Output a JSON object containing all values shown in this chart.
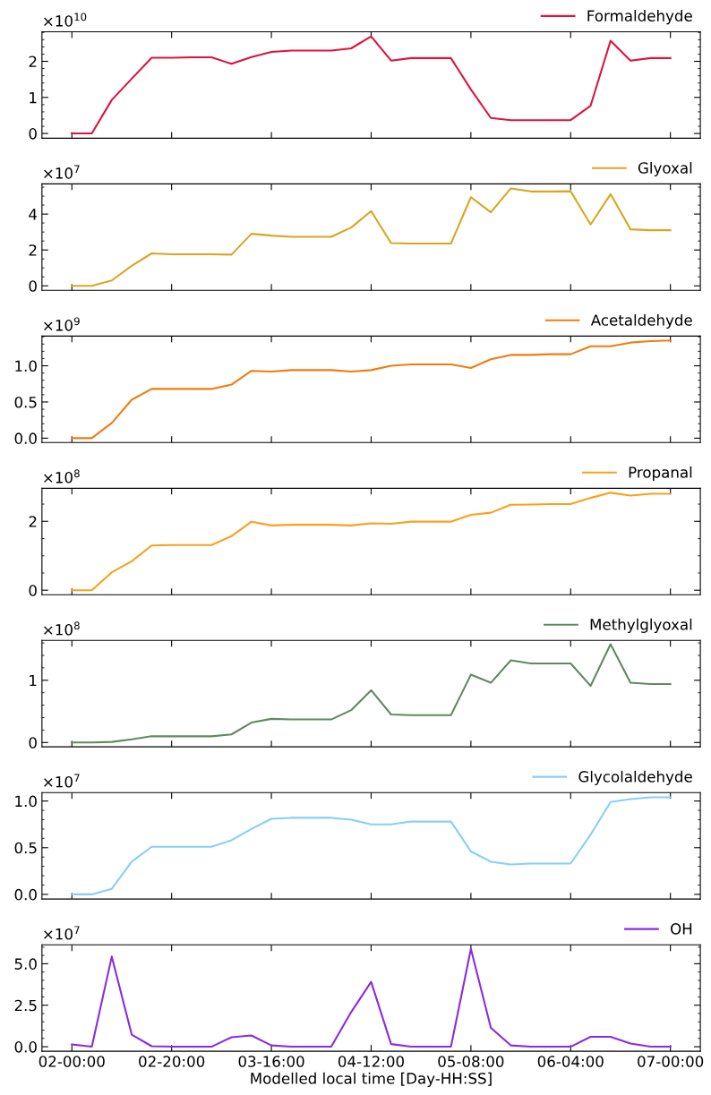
{
  "chart_data": [
    {
      "type": "line",
      "categories": [
        null,
        null,
        null,
        null,
        null,
        null,
        null,
        null,
        null,
        null,
        null,
        null,
        null,
        null,
        null,
        null,
        null,
        null,
        null,
        null,
        null,
        null,
        null,
        null,
        null,
        null,
        null,
        null,
        null,
        null,
        null
      ],
      "tick_labels": "y",
      "legend": "top right",
      "annotations": [
        "×10$^{10}$"
      ],
      "ylim": [
        -0.13,
        2.82
      ],
      "yticks": [
        0,
        1,
        2
      ],
      "series": [
        {
          "name": "Formaldehyde",
          "color": "#dc143c",
          "values": [
            0,
            0,
            0.93,
            1.52,
            2.1,
            2.1,
            2.11,
            2.11,
            1.93,
            2.12,
            2.26,
            2.3,
            2.3,
            2.3,
            2.36,
            2.69,
            2.02,
            2.09,
            2.09,
            2.09,
            1.22,
            0.43,
            0.37,
            0.37,
            0.37,
            0.37,
            0.77,
            2.57,
            2.02,
            2.09,
            2.09
          ]
        }
      ]
    },
    {
      "type": "line",
      "categories": [
        null,
        null,
        null,
        null,
        null,
        null,
        null,
        null,
        null,
        null,
        null,
        null,
        null,
        null,
        null,
        null,
        null,
        null,
        null,
        null,
        null,
        null,
        null,
        null,
        null,
        null,
        null,
        null,
        null,
        null,
        null
      ],
      "tick_labels": "y",
      "legend": "top right",
      "annotations": [
        "×10$^{7}$"
      ],
      "ylim": [
        -0.25,
        5.68
      ],
      "yticks": [
        0,
        2,
        4
      ],
      "series": [
        {
          "name": "Glyoxal",
          "color": "#daa520",
          "values": [
            0,
            0,
            0.3,
            1.12,
            1.81,
            1.76,
            1.76,
            1.76,
            1.74,
            2.9,
            2.8,
            2.73,
            2.73,
            2.73,
            3.25,
            4.17,
            2.38,
            2.36,
            2.36,
            2.36,
            4.94,
            4.1,
            5.43,
            5.26,
            5.26,
            5.27,
            3.42,
            5.11,
            3.15,
            3.1,
            3.1
          ]
        }
      ]
    },
    {
      "type": "line",
      "categories": [
        null,
        null,
        null,
        null,
        null,
        null,
        null,
        null,
        null,
        null,
        null,
        null,
        null,
        null,
        null,
        null,
        null,
        null,
        null,
        null,
        null,
        null,
        null,
        null,
        null,
        null,
        null,
        null,
        null,
        null,
        null
      ],
      "tick_labels": "y",
      "legend": "top right",
      "annotations": [
        "×10$^{9}$"
      ],
      "ylim": [
        -0.06,
        1.41
      ],
      "yticks": [
        {
          "value": 0,
          "label": "0.0"
        },
        0.5,
        {
          "value": 1,
          "label": "1.0"
        }
      ],
      "series": [
        {
          "name": "Acetaldehyde",
          "color": "#ee7d11",
          "values": [
            0,
            0,
            0.21,
            0.53,
            0.68,
            0.68,
            0.68,
            0.68,
            0.74,
            0.93,
            0.92,
            0.94,
            0.94,
            0.94,
            0.92,
            0.94,
            1.0,
            1.02,
            1.02,
            1.02,
            0.97,
            1.09,
            1.15,
            1.15,
            1.16,
            1.16,
            1.27,
            1.27,
            1.32,
            1.34,
            1.35
          ]
        }
      ]
    },
    {
      "type": "line",
      "categories": [
        null,
        null,
        null,
        null,
        null,
        null,
        null,
        null,
        null,
        null,
        null,
        null,
        null,
        null,
        null,
        null,
        null,
        null,
        null,
        null,
        null,
        null,
        null,
        null,
        null,
        null,
        null,
        null,
        null,
        null,
        null
      ],
      "tick_labels": "y",
      "legend": "top right",
      "annotations": [
        "×10$^{8}$"
      ],
      "ylim": [
        -0.13,
        2.96
      ],
      "yticks": [
        0,
        2
      ],
      "series": [
        {
          "name": "Propanal",
          "color": "#f9a11b",
          "values": [
            0,
            0,
            0.52,
            0.84,
            1.3,
            1.31,
            1.31,
            1.31,
            1.57,
            1.99,
            1.88,
            1.9,
            1.9,
            1.9,
            1.88,
            1.94,
            1.93,
            1.99,
            1.99,
            1.99,
            2.19,
            2.25,
            2.48,
            2.49,
            2.5,
            2.5,
            2.68,
            2.83,
            2.75,
            2.8,
            2.8
          ]
        }
      ]
    },
    {
      "type": "line",
      "categories": [
        null,
        null,
        null,
        null,
        null,
        null,
        null,
        null,
        null,
        null,
        null,
        null,
        null,
        null,
        null,
        null,
        null,
        null,
        null,
        null,
        null,
        null,
        null,
        null,
        null,
        null,
        null,
        null,
        null,
        null,
        null
      ],
      "tick_labels": "y",
      "legend": "top right",
      "annotations": [
        "×10$^{8}$"
      ],
      "ylim": [
        -0.07,
        1.64
      ],
      "yticks": [
        0,
        1
      ],
      "series": [
        {
          "name": "Methylglyoxal",
          "color": "#5f8a5f",
          "values": [
            0,
            0,
            0.01,
            0.05,
            0.1,
            0.1,
            0.1,
            0.1,
            0.13,
            0.32,
            0.38,
            0.37,
            0.37,
            0.37,
            0.52,
            0.84,
            0.45,
            0.44,
            0.44,
            0.44,
            1.09,
            0.96,
            1.32,
            1.27,
            1.27,
            1.27,
            0.91,
            1.58,
            0.96,
            0.94,
            0.94
          ]
        }
      ]
    },
    {
      "type": "line",
      "categories": [
        null,
        null,
        null,
        null,
        null,
        null,
        null,
        null,
        null,
        null,
        null,
        null,
        null,
        null,
        null,
        null,
        null,
        null,
        null,
        null,
        null,
        null,
        null,
        null,
        null,
        null,
        null,
        null,
        null,
        null,
        null
      ],
      "tick_labels": "y",
      "legend": "top right",
      "annotations": [
        "×10$^{7}$"
      ],
      "ylim": [
        -0.05,
        1.09
      ],
      "yticks": [
        {
          "value": 0,
          "label": "0.0"
        },
        0.5,
        {
          "value": 1,
          "label": "1.0"
        }
      ],
      "series": [
        {
          "name": "Glycolaldehyde",
          "color": "#87cefa",
          "values": [
            0,
            0,
            0.06,
            0.35,
            0.51,
            0.51,
            0.51,
            0.51,
            0.58,
            0.7,
            0.81,
            0.82,
            0.82,
            0.82,
            0.8,
            0.75,
            0.75,
            0.78,
            0.78,
            0.78,
            0.46,
            0.35,
            0.32,
            0.33,
            0.33,
            0.33,
            0.64,
            0.99,
            1.02,
            1.04,
            1.04
          ]
        }
      ]
    },
    {
      "type": "line",
      "categories": [
        "02-00:00",
        null,
        null,
        null,
        null,
        "02-20:00",
        null,
        null,
        null,
        null,
        "03-16:00",
        null,
        null,
        null,
        null,
        "04-12:00",
        null,
        null,
        null,
        null,
        "05-08:00",
        null,
        null,
        null,
        null,
        "06-04:00",
        null,
        null,
        null,
        null,
        "07-00:00"
      ],
      "xlabel": "Modelled local time [Day-HH:SS]",
      "legend": "top right",
      "annotations": [
        "×10$^{7}$"
      ],
      "ylim": [
        -0.27,
        6.14
      ],
      "yticks": [
        {
          "value": 0,
          "label": "0.0"
        },
        2.5,
        {
          "value": 5,
          "label": "5.0"
        }
      ],
      "series": [
        {
          "name": "OH",
          "color": "#8a2be2",
          "values": [
            0.14,
            0,
            5.43,
            0.73,
            0.03,
            0,
            0,
            0,
            0.57,
            0.68,
            0.08,
            0,
            0,
            0,
            2.09,
            3.91,
            0.16,
            0,
            0,
            0,
            5.9,
            1.14,
            0.08,
            0,
            0,
            0,
            0.6,
            0.6,
            0.19,
            0,
            0
          ]
        }
      ]
    }
  ]
}
